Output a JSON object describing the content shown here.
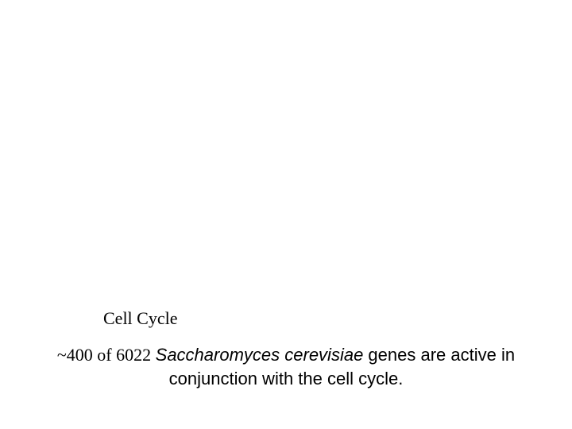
{
  "label": {
    "text": "Cell Cycle"
  },
  "caption": {
    "prefix": "~400 of 6022 ",
    "species": "Saccharomyces cerevisiae",
    "middle": " genes are active in",
    "line2": "conjunction with the cell cycle."
  },
  "styling": {
    "background_color": "#ffffff",
    "text_color": "#000000",
    "label_fontsize": 22,
    "label_font": "Times New Roman",
    "caption_fontsize": 22,
    "caption_font": "Arial"
  }
}
